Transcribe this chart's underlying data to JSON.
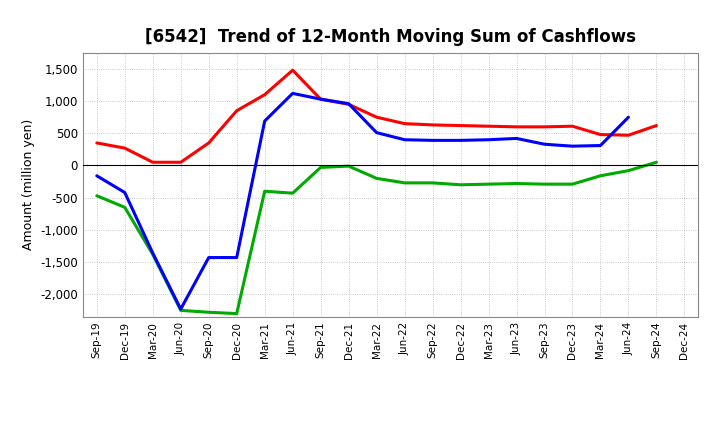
{
  "title": "[6542]  Trend of 12-Month Moving Sum of Cashflows",
  "ylabel": "Amount (million yen)",
  "background_color": "#ffffff",
  "grid_color": "#bbbbbb",
  "x_labels": [
    "Sep-19",
    "Dec-19",
    "Mar-20",
    "Jun-20",
    "Sep-20",
    "Dec-20",
    "Mar-21",
    "Jun-21",
    "Sep-21",
    "Dec-21",
    "Mar-22",
    "Jun-22",
    "Sep-22",
    "Dec-22",
    "Mar-23",
    "Jun-23",
    "Sep-23",
    "Dec-23",
    "Mar-24",
    "Jun-24",
    "Sep-24",
    "Dec-24"
  ],
  "operating": [
    350,
    270,
    50,
    50,
    350,
    850,
    1100,
    1480,
    1030,
    950,
    750,
    650,
    630,
    620,
    610,
    600,
    600,
    610,
    480,
    470,
    620,
    null
  ],
  "investing": [
    -470,
    -650,
    -1380,
    -2250,
    -2280,
    -2300,
    -400,
    -430,
    -30,
    -10,
    -200,
    -270,
    -270,
    -300,
    -290,
    -280,
    -290,
    -290,
    -160,
    -80,
    50,
    null
  ],
  "free": [
    -160,
    -420,
    -1360,
    -2230,
    -1430,
    -1430,
    690,
    1120,
    1030,
    960,
    510,
    400,
    390,
    390,
    400,
    420,
    330,
    300,
    310,
    750,
    null,
    null
  ],
  "ylim": [
    -2350,
    1750
  ],
  "yticks": [
    -2000,
    -1500,
    -1000,
    -500,
    0,
    500,
    1000,
    1500
  ],
  "operating_color": "#ff0000",
  "investing_color": "#00aa00",
  "free_color": "#0000ff",
  "line_width": 2.2
}
